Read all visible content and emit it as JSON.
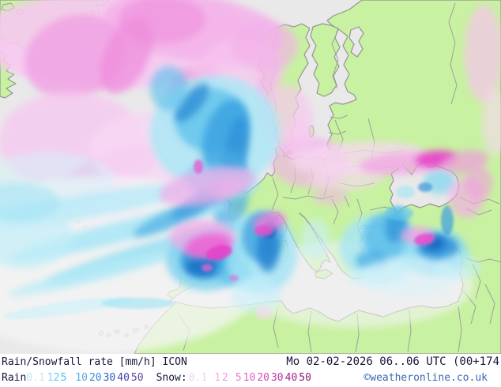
{
  "header": {
    "product_title": "Rain/Snowfall rate [mm/h] ICON",
    "datetime": "Mo 02-02-2026 06..06 UTC (00+174",
    "copyright": "©weatheronline.co.uk"
  },
  "legend": {
    "rain_label": "Rain",
    "snow_label": "Snow:",
    "rain_values": [
      {
        "v": "0.1",
        "c": "#c2e7f0",
        "gap": 0
      },
      {
        "v": "1",
        "c": "#84d4f2",
        "gap": 3
      },
      {
        "v": "2",
        "c": "#62caf0",
        "gap": 0
      },
      {
        "v": "5",
        "c": "#4ec2ee",
        "gap": 1
      },
      {
        "v": "10",
        "c": "#58aae8",
        "gap": 11
      },
      {
        "v": "20",
        "c": "#3a88d8",
        "gap": 2
      },
      {
        "v": "30",
        "c": "#2a62c4",
        "gap": 2
      },
      {
        "v": "40",
        "c": "#4042b0",
        "gap": 2
      },
      {
        "v": "50",
        "c": "#6143a2",
        "gap": 2
      }
    ],
    "snow_values": [
      {
        "v": "0.1",
        "c": "#f2d0ec",
        "gap": 2
      },
      {
        "v": "1",
        "c": "#f2aae4",
        "gap": 9
      },
      {
        "v": "2",
        "c": "#ee96dc",
        "gap": 2
      },
      {
        "v": "5",
        "c": "#e87cd2",
        "gap": 9
      },
      {
        "v": "10",
        "c": "#e164c8",
        "gap": 2
      },
      {
        "v": "20",
        "c": "#d44cba",
        "gap": 2
      },
      {
        "v": "30",
        "c": "#c436aa",
        "gap": 2
      },
      {
        "v": "40",
        "c": "#aa2292",
        "gap": 2
      },
      {
        "v": "50",
        "c": "#8e187c",
        "gap": 2
      }
    ]
  },
  "map": {
    "palette": {
      "sea": "#e9e9e9",
      "land": "#c8f1a1",
      "coast": "#949494",
      "border": "#9b9b9b"
    },
    "snow_cells": [
      [
        150,
        50,
        180,
        62,
        0,
        "#f6c9f0",
        0.9,
        1
      ],
      [
        245,
        35,
        115,
        42,
        8,
        "#f3b1ea",
        0.85,
        1
      ],
      [
        95,
        72,
        65,
        52,
        -20,
        "#f0a0e4",
        0.8,
        1
      ],
      [
        160,
        70,
        28,
        52,
        25,
        "#ee8edc",
        0.75,
        1
      ],
      [
        205,
        25,
        55,
        30,
        0,
        "#ee8edc",
        0.6,
        1
      ],
      [
        230,
        122,
        18,
        38,
        20,
        "#f0a0e4",
        0.7,
        1
      ],
      [
        262,
        94,
        13,
        15,
        0,
        "#f0a0e4",
        0.65,
        1
      ],
      [
        90,
        178,
        92,
        62,
        0,
        "#f6c9f0",
        0.8,
        1
      ],
      [
        135,
        222,
        68,
        26,
        -25,
        "#f0a0e4",
        0.65,
        1
      ],
      [
        205,
        192,
        92,
        52,
        0,
        "#f8d7f4",
        0.8,
        1
      ],
      [
        100,
        268,
        85,
        40,
        0,
        "#f8d7f4",
        0.45,
        1
      ],
      [
        285,
        170,
        17,
        13,
        0,
        "#f2a8e6",
        0.5,
        1
      ],
      [
        305,
        88,
        55,
        38,
        0,
        "#f6c4ee",
        0.7,
        1
      ],
      [
        335,
        58,
        42,
        32,
        0,
        "#f3b1ea",
        0.65,
        1
      ],
      [
        338,
        108,
        13,
        46,
        6,
        "#f4b4ea",
        0.6,
        1
      ],
      [
        362,
        150,
        34,
        42,
        0,
        "#f6c9f0",
        0.7,
        1
      ],
      [
        392,
        205,
        50,
        32,
        0,
        "#f3b1ea",
        0.65,
        1
      ],
      [
        376,
        172,
        20,
        24,
        0,
        "#f6c9f0",
        0.6,
        1
      ],
      [
        452,
        200,
        85,
        20,
        -4,
        "#f8d7f4",
        0.75,
        1
      ],
      [
        440,
        225,
        48,
        16,
        -5,
        "#f8d7f4",
        0.6,
        1
      ],
      [
        418,
        248,
        22,
        12,
        0,
        "#f3b1ea",
        0.5,
        1
      ],
      [
        612,
        68,
        24,
        62,
        0,
        "#f6c4ee",
        0.7,
        1
      ],
      [
        626,
        155,
        16,
        42,
        0,
        "#f8d7f4",
        0.6,
        1
      ],
      [
        262,
        236,
        62,
        22,
        -12,
        "#f3aae8",
        0.7,
        2
      ],
      [
        251,
        211,
        6,
        9,
        0,
        "#e94ecc",
        0.7,
        2
      ],
      [
        283,
        237,
        26,
        12,
        -10,
        "#f3b1ea",
        0.55,
        2
      ],
      [
        510,
        207,
        55,
        14,
        -4,
        "#f2a4e6",
        0.75,
        2
      ],
      [
        552,
        201,
        26,
        10,
        -6,
        "#e838c8",
        0.85,
        2
      ],
      [
        588,
        205,
        30,
        14,
        -10,
        "#f09ade",
        0.7,
        2
      ],
      [
        590,
        250,
        22,
        26,
        0,
        "#f4aae6",
        0.65,
        2
      ],
      [
        606,
        232,
        17,
        22,
        0,
        "#f09ce0",
        0.6,
        2
      ],
      [
        341,
        281,
        21,
        12,
        -15,
        "#ef7ad8",
        0.8,
        2
      ],
      [
        333,
        292,
        11,
        7,
        0,
        "#e94ecc",
        0.8,
        2
      ],
      [
        256,
        300,
        42,
        22,
        0,
        "#f4a8e6",
        0.75,
        2
      ],
      [
        264,
        311,
        30,
        15,
        -10,
        "#ee62d2",
        0.85,
        2
      ],
      [
        277,
        320,
        17,
        9,
        -15,
        "#e53ec8",
        0.85,
        2
      ],
      [
        262,
        339,
        7,
        5,
        0,
        "#ee62d2",
        0.7,
        2
      ],
      [
        296,
        352,
        6,
        4,
        0,
        "#ee62d2",
        0.6,
        2
      ],
      [
        528,
        298,
        21,
        11,
        0,
        "#f4a0e2",
        0.75,
        2
      ],
      [
        537,
        303,
        13,
        7,
        -10,
        "#e94ecc",
        0.85,
        2
      ],
      [
        334,
        396,
        11,
        9,
        0,
        "#f8d7f4",
        0.55,
        2
      ]
    ],
    "rain_cells": [
      [
        130,
        335,
        215,
        112,
        0,
        "#f5f6f5",
        0.75
      ],
      [
        450,
        360,
        150,
        55,
        0,
        "#f3f4f3",
        0.6
      ],
      [
        60,
        228,
        85,
        35,
        0,
        "#d4f3fa",
        0.5
      ],
      [
        272,
        168,
        82,
        72,
        0,
        "#ace7f6",
        0.85
      ],
      [
        267,
        152,
        46,
        40,
        0,
        "#5fc2ec",
        0.8
      ],
      [
        286,
        175,
        28,
        50,
        15,
        "#38a0e0",
        0.8
      ],
      [
        243,
        130,
        12,
        30,
        40,
        "#2b8ad2",
        0.75
      ],
      [
        299,
        193,
        14,
        46,
        8,
        "#2f92d8",
        0.75
      ],
      [
        214,
        112,
        24,
        28,
        0,
        "#5fc2ec",
        0.65
      ],
      [
        291,
        243,
        24,
        52,
        4,
        "#48ace2",
        0.7
      ],
      [
        289,
        233,
        40,
        18,
        0,
        "#9fe2f4",
        0.6
      ],
      [
        262,
        228,
        28,
        22,
        0,
        "#6fcbee",
        0.55
      ],
      [
        115,
        260,
        132,
        15,
        -10,
        "#b6ebf8",
        0.8
      ],
      [
        150,
        294,
        142,
        13,
        -14,
        "#a4e6f6",
        0.8
      ],
      [
        185,
        320,
        132,
        12,
        -17,
        "#94dff3",
        0.8
      ],
      [
        120,
        346,
        112,
        10,
        -14,
        "#b6ebf8",
        0.7
      ],
      [
        85,
        390,
        82,
        8,
        -8,
        "#c8f0fa",
        0.6
      ],
      [
        222,
        274,
        58,
        11,
        -24,
        "#4aaee4",
        0.7
      ],
      [
        250,
        256,
        38,
        10,
        -32,
        "#3a9cdc",
        0.7
      ],
      [
        30,
        298,
        62,
        42,
        0,
        "#c2eef8",
        0.7
      ],
      [
        24,
        256,
        52,
        24,
        0,
        "#9ce2f4",
        0.55
      ],
      [
        174,
        384,
        46,
        7,
        0,
        "#9ce2f4",
        0.6
      ],
      [
        262,
        330,
        52,
        38,
        0,
        "#7cd2f0",
        0.8
      ],
      [
        264,
        328,
        36,
        24,
        -5,
        "#2e96dc",
        0.85
      ],
      [
        255,
        338,
        20,
        12,
        0,
        "#1a70c6",
        0.85
      ],
      [
        298,
        346,
        22,
        16,
        0,
        "#5cc0ea",
        0.7
      ],
      [
        330,
        320,
        46,
        52,
        0,
        "#a0e4f6",
        0.8
      ],
      [
        332,
        300,
        26,
        32,
        0,
        "#3ea4e0",
        0.8
      ],
      [
        339,
        316,
        14,
        28,
        0,
        "#1e7ecf",
        0.8
      ],
      [
        341,
        291,
        9,
        11,
        0,
        "#1668c0",
        0.8
      ],
      [
        324,
        374,
        32,
        22,
        0,
        "#c8f0fa",
        0.6
      ],
      [
        399,
        303,
        18,
        26,
        0,
        "#c8f0fa",
        0.6
      ],
      [
        481,
        313,
        52,
        42,
        0,
        "#a6e6f6",
        0.8
      ],
      [
        490,
        300,
        31,
        30,
        0,
        "#56bce8",
        0.8
      ],
      [
        501,
        285,
        13,
        22,
        10,
        "#2e94da",
        0.75
      ],
      [
        470,
        330,
        20,
        13,
        0,
        "#44aae4",
        0.7
      ],
      [
        478,
        350,
        38,
        13,
        0,
        "#c8f0fa",
        0.6
      ],
      [
        551,
        320,
        42,
        30,
        0,
        "#8edcf2",
        0.8
      ],
      [
        554,
        314,
        26,
        18,
        0,
        "#2e92da",
        0.85
      ],
      [
        549,
        308,
        14,
        10,
        0,
        "#1265c0",
        0.85
      ],
      [
        580,
        338,
        28,
        16,
        0,
        "#c2eef8",
        0.6
      ],
      [
        566,
        279,
        8,
        19,
        0,
        "#3a9ede",
        0.7
      ],
      [
        505,
        270,
        18,
        9,
        0,
        "#66c8ee",
        0.65
      ],
      [
        518,
        350,
        60,
        26,
        0,
        "#d8f3fa",
        0.55
      ],
      [
        556,
        230,
        20,
        16,
        0,
        "#7ed6f0",
        0.7
      ],
      [
        538,
        237,
        9,
        6,
        0,
        "#2e90d8",
        0.65
      ],
      [
        513,
        243,
        12,
        8,
        0,
        "#a0e4f6",
        0.6
      ]
    ]
  }
}
